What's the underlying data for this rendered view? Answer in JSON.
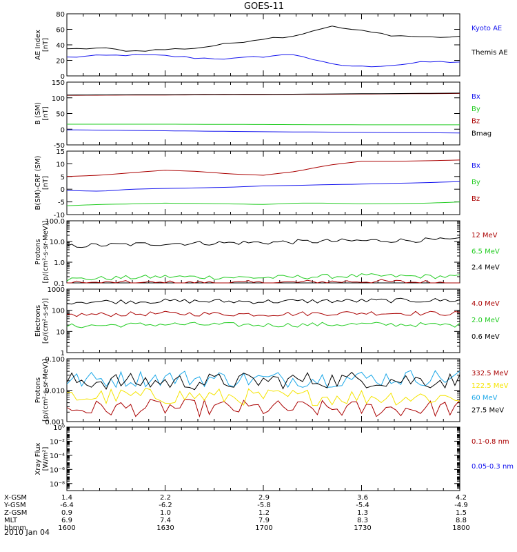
{
  "title": "GOES-11",
  "date_label": "2010 Jan 04",
  "colors": {
    "black": "#000000",
    "blue": "#1414ee",
    "green": "#22cc22",
    "red": "#aa0000",
    "cyan": "#1aa7e8",
    "yellow": "#f5e400"
  },
  "ephemeris": {
    "rows": [
      {
        "label": "X-GSM",
        "values": [
          "1.4",
          "2.2",
          "2.9",
          "3.6",
          "4.2"
        ]
      },
      {
        "label": "Y-GSM",
        "values": [
          "-6.4",
          "-6.2",
          "-5.8",
          "-5.4",
          "-4.9"
        ]
      },
      {
        "label": "Z-GSM",
        "values": [
          "0.9",
          "1.0",
          "1.2",
          "1.3",
          "1.5"
        ]
      },
      {
        "label": "MLT",
        "values": [
          "6.9",
          "7.4",
          "7.9",
          "8.3",
          "8.8"
        ]
      },
      {
        "label": "hhmm",
        "values": [
          "1600",
          "1630",
          "1700",
          "1730",
          "1800"
        ]
      }
    ]
  },
  "chart_data": [
    {
      "type": "line",
      "ylabel": "AE Index\n[nT]",
      "scale": "linear",
      "ylim": [
        0,
        80
      ],
      "yticks": [
        "0",
        "20",
        "40",
        "60",
        "80"
      ],
      "ytickvals": [
        0,
        20,
        40,
        60,
        80
      ],
      "x": [
        1600,
        1610,
        1620,
        1630,
        1640,
        1650,
        1700,
        1710,
        1720,
        1730,
        1740,
        1750,
        1800
      ],
      "series": [
        {
          "name": "Kyoto AE",
          "color": "#1414ee",
          "values": [
            24,
            26,
            27,
            26,
            23,
            22,
            25,
            28,
            15,
            12,
            14,
            18,
            18
          ]
        },
        {
          "name": "Themis AE",
          "color": "#000000",
          "values": [
            34,
            36,
            32,
            34,
            36,
            42,
            48,
            52,
            64,
            58,
            52,
            50,
            50
          ]
        }
      ]
    },
    {
      "type": "line",
      "ylabel": "B (SM)\n[nT]",
      "scale": "linear",
      "ylim": [
        -50,
        150
      ],
      "yticks": [
        "-50",
        "0",
        "50",
        "100",
        "150"
      ],
      "ytickvals": [
        -50,
        0,
        50,
        100,
        150
      ],
      "x": [
        1600,
        1630,
        1700,
        1730,
        1800
      ],
      "series": [
        {
          "name": "Bx",
          "color": "#1414ee",
          "values": [
            -2,
            -5,
            -8,
            -10,
            -12
          ]
        },
        {
          "name": "By",
          "color": "#22cc22",
          "values": [
            16,
            16,
            15,
            14,
            14
          ]
        },
        {
          "name": "Bz",
          "color": "#aa0000",
          "values": [
            108,
            109,
            110,
            112,
            114
          ]
        },
        {
          "name": "Bmag",
          "color": "#000000",
          "values": [
            109,
            110,
            111,
            113,
            115
          ]
        }
      ]
    },
    {
      "type": "line",
      "ylabel": "B(SM)-CRF (SM)\n[nT]",
      "scale": "linear",
      "ylim": [
        -10,
        15
      ],
      "yticks": [
        "-10",
        "-5",
        "0",
        "5",
        "10",
        "15"
      ],
      "ytickvals": [
        -10,
        -5,
        0,
        5,
        10,
        15
      ],
      "x": [
        1600,
        1610,
        1620,
        1630,
        1640,
        1650,
        1700,
        1710,
        1720,
        1730,
        1740,
        1750,
        1800
      ],
      "series": [
        {
          "name": "Bx",
          "color": "#1414ee",
          "values": [
            -0.5,
            -0.8,
            0,
            0.3,
            0.5,
            0.8,
            1.3,
            1.5,
            1.8,
            2.0,
            2.3,
            2.6,
            3.0
          ]
        },
        {
          "name": "By",
          "color": "#22cc22",
          "values": [
            -6.5,
            -6,
            -5.8,
            -5.5,
            -5.6,
            -5.8,
            -6,
            -5.5,
            -5.5,
            -5.8,
            -5.7,
            -5.5,
            -5
          ]
        },
        {
          "name": "Bz",
          "color": "#aa0000",
          "values": [
            5,
            5.5,
            6.5,
            7.5,
            7,
            6,
            5.5,
            7,
            9.5,
            11,
            11,
            11.2,
            11.5
          ]
        }
      ]
    },
    {
      "type": "line",
      "ylabel": "Protons\n[p/(cm²-s-sr-MeV)]",
      "scale": "log",
      "ylim": [
        0.1,
        100
      ],
      "yticks": [
        "0.1",
        "1.0",
        "10.0",
        "100.0"
      ],
      "ytickvals": [
        0.1,
        1,
        10,
        100
      ],
      "x": [
        1600,
        1630,
        1700,
        1730,
        1800
      ],
      "series": [
        {
          "name": "12 MeV",
          "color": "#aa0000",
          "values": [
            0.1,
            0.1,
            0.1,
            0.12,
            0.1
          ]
        },
        {
          "name": "6.5 MeV",
          "color": "#22cc22",
          "values": [
            0.15,
            0.2,
            0.18,
            0.22,
            0.2
          ]
        },
        {
          "name": "2.4 MeV",
          "color": "#000000",
          "values": [
            6,
            8,
            9,
            11,
            12
          ]
        }
      ]
    },
    {
      "type": "line",
      "ylabel": "Electrons\n[e/(cm²-s-sr)]",
      "scale": "log",
      "ylim": [
        1,
        1000
      ],
      "yticks": [
        "1",
        "10",
        "100",
        "1000"
      ],
      "ytickvals": [
        1,
        10,
        100,
        1000
      ],
      "x": [
        1600,
        1630,
        1700,
        1730,
        1800
      ],
      "series": [
        {
          "name": "4.0 MeV",
          "color": "#aa0000",
          "values": [
            60,
            70,
            65,
            75,
            70
          ]
        },
        {
          "name": "2.0 MeV",
          "color": "#22cc22",
          "values": [
            18,
            22,
            20,
            22,
            20
          ]
        },
        {
          "name": "0.6 MeV",
          "color": "#000000",
          "values": [
            250,
            270,
            260,
            280,
            300
          ]
        }
      ]
    },
    {
      "type": "line",
      "ylabel": "Protons\n[p/(cm²-s-sr-MeV)]",
      "scale": "log",
      "ylim": [
        0.001,
        0.1
      ],
      "yticks": [
        "0.001",
        "0.010",
        "0.100"
      ],
      "ytickvals": [
        0.001,
        0.01,
        0.1
      ],
      "x": [
        1600,
        1630,
        1700,
        1730,
        1800
      ],
      "series": [
        {
          "name": "332.5 MeV",
          "color": "#aa0000",
          "values": [
            0.0025,
            0.0028,
            0.0026,
            0.0025,
            0.0027
          ]
        },
        {
          "name": "122.5 MeV",
          "color": "#f5e400",
          "values": [
            0.006,
            0.0065,
            0.006,
            0.0062,
            0.006
          ]
        },
        {
          "name": "60 MeV",
          "color": "#1aa7e8",
          "values": [
            0.02,
            0.025,
            0.022,
            0.024,
            0.026
          ]
        },
        {
          "name": "27.5 MeV",
          "color": "#000000",
          "values": [
            0.02,
            0.018,
            0.02,
            0.022,
            0.02
          ]
        }
      ]
    },
    {
      "type": "line",
      "ylabel": "Xray Flux\n[W/m²]",
      "scale": "log",
      "ylim": [
        1e-09,
        1
      ],
      "yticks": [
        "10⁻⁸",
        "10⁻⁶",
        "10⁻⁴",
        "10⁻²",
        "10⁰"
      ],
      "ytickvals": [
        1e-08,
        1e-06,
        0.0001,
        0.01,
        1
      ],
      "x": [],
      "series": [
        {
          "name": "0.1-0.8 nm",
          "color": "#aa0000",
          "values": []
        },
        {
          "name": "0.05-0.3 nm",
          "color": "#1414ee",
          "values": []
        }
      ]
    }
  ]
}
